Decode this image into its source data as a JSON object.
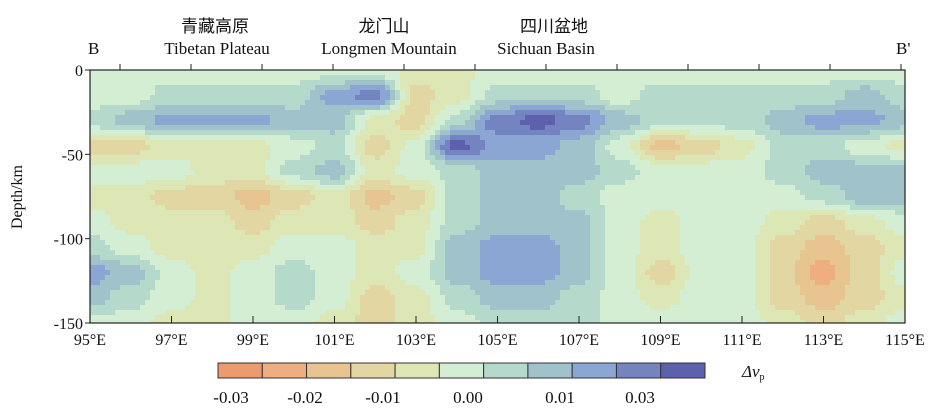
{
  "chart_data": {
    "type": "heatmap",
    "title": "",
    "xlabel": "",
    "ylabel": "Depth/km",
    "profile_start_label": "B",
    "profile_end_label": "B'",
    "regions": [
      {
        "cn": "青藏高原",
        "en": "Tibetan Plateau"
      },
      {
        "cn": "龙门山",
        "en": "Longmen Mountain"
      },
      {
        "cn": "四川盆地",
        "en": "Sichuan Basin"
      }
    ],
    "xlim": [
      95,
      115
    ],
    "ylim": [
      -150,
      0
    ],
    "x_ticks": [
      "95°E",
      "97°E",
      "99°E",
      "101°E",
      "103°E",
      "105°E",
      "107°E",
      "109°E",
      "111°E",
      "113°E",
      "115°E"
    ],
    "y_ticks": [
      "0",
      "-50",
      "-100",
      "-150"
    ],
    "colorbar": {
      "label": "Δv",
      "label_sub": "p",
      "tick_labels": [
        "-0.03",
        "-0.02",
        "-0.01",
        "0.00",
        "0.01",
        "0.03"
      ],
      "range": [
        -0.03,
        0.03
      ],
      "colors": [
        "#ee9a6f",
        "#eeae7f",
        "#e8c491",
        "#e2d6a2",
        "#dde7b6",
        "#d3eed3",
        "#b5d9cb",
        "#a0c2cb",
        "#8ba6d3",
        "#7384c0",
        "#5c60ad"
      ]
    },
    "lon": [
      95,
      96,
      97,
      98,
      99,
      100,
      101,
      102,
      103,
      104,
      105,
      106,
      107,
      108,
      109,
      110,
      111,
      112,
      113,
      114,
      115
    ],
    "depth": [
      0,
      15,
      30,
      45,
      60,
      75,
      90,
      105,
      120,
      135,
      150
    ],
    "values": [
      [
        0,
        0,
        0,
        0,
        0,
        0,
        0,
        0,
        -0.005,
        -0.005,
        0,
        0,
        0,
        0,
        0,
        0,
        0,
        0,
        0,
        0,
        0
      ],
      [
        0,
        0,
        0.005,
        0.005,
        0.005,
        0.005,
        0.016,
        0.022,
        -0.011,
        -0.005,
        0.005,
        0.005,
        0.005,
        0,
        0.005,
        0.005,
        0.005,
        0.005,
        0.005,
        0.011,
        0.005
      ],
      [
        0.005,
        0.011,
        0.016,
        0.016,
        0.016,
        0.011,
        0.011,
        -0.005,
        -0.011,
        0.005,
        0.022,
        0.027,
        0.022,
        0.011,
        0.005,
        0.005,
        0.005,
        0.011,
        0.016,
        0.016,
        0.011
      ],
      [
        -0.011,
        -0.011,
        -0.005,
        -0.005,
        -0.005,
        0,
        0.005,
        -0.011,
        0,
        0.027,
        0.016,
        0.016,
        0.011,
        0,
        -0.016,
        -0.011,
        -0.005,
        0.005,
        0.005,
        0,
        -0.005
      ],
      [
        0,
        0,
        0,
        -0.005,
        -0.005,
        0.005,
        0.011,
        -0.005,
        0,
        0.005,
        0.011,
        0.011,
        0.011,
        0.005,
        0,
        0,
        0,
        0.005,
        0.011,
        0.011,
        0.011
      ],
      [
        -0.005,
        -0.005,
        -0.011,
        -0.011,
        -0.016,
        -0.011,
        -0.005,
        -0.016,
        -0.011,
        0.005,
        0.011,
        0.011,
        0.005,
        0,
        0,
        0,
        0,
        0,
        0.005,
        0.011,
        0.011
      ],
      [
        0,
        -0.005,
        -0.005,
        -0.005,
        -0.011,
        -0.005,
        -0.005,
        -0.011,
        -0.005,
        0.005,
        0.011,
        0.011,
        0.011,
        0,
        -0.005,
        0,
        0,
        -0.005,
        -0.011,
        -0.005,
        0
      ],
      [
        0.005,
        0,
        -0.005,
        -0.005,
        -0.005,
        0,
        0,
        -0.005,
        -0.005,
        0.011,
        0.016,
        0.016,
        0.011,
        0,
        -0.005,
        0,
        0,
        -0.011,
        -0.016,
        -0.011,
        -0.005
      ],
      [
        0.016,
        0.011,
        0,
        -0.005,
        0,
        0.005,
        0,
        -0.005,
        0,
        0.011,
        0.016,
        0.016,
        0.011,
        0,
        -0.011,
        0,
        0,
        -0.011,
        -0.022,
        -0.011,
        0
      ],
      [
        0.011,
        0.005,
        0,
        -0.005,
        0,
        0.005,
        0,
        -0.011,
        -0.005,
        0.005,
        0.011,
        0.011,
        0.005,
        0,
        -0.005,
        0,
        0,
        -0.011,
        -0.016,
        -0.011,
        -0.005
      ],
      [
        0,
        0,
        -0.005,
        -0.005,
        0,
        0,
        -0.005,
        -0.011,
        -0.005,
        0,
        0.005,
        0.005,
        0.005,
        0,
        0,
        0,
        0,
        -0.005,
        -0.011,
        -0.005,
        0
      ]
    ]
  }
}
